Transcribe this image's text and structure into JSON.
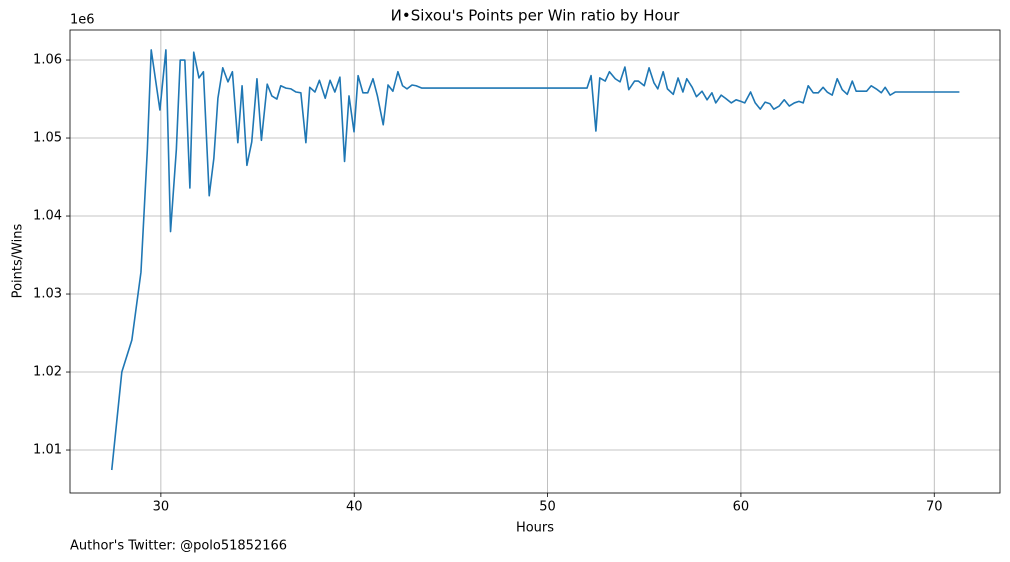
{
  "chart_data": {
    "type": "line",
    "title": "И•Sixou's Points per Win ratio by Hour",
    "xlabel": "Hours",
    "ylabel": "Points/Wins",
    "y_offset_label": "1e6",
    "footer": "Author's Twitter: @polo51852166",
    "grid": true,
    "xlim": [
      25.3,
      73.4
    ],
    "ylim": [
      1004490,
      1063850
    ],
    "xticks": [
      30,
      40,
      50,
      60,
      70
    ],
    "yticks": [
      {
        "value": 1010000,
        "label": "1.01"
      },
      {
        "value": 1020000,
        "label": "1.02"
      },
      {
        "value": 1030000,
        "label": "1.03"
      },
      {
        "value": 1040000,
        "label": "1.04"
      },
      {
        "value": 1050000,
        "label": "1.05"
      },
      {
        "value": 1060000,
        "label": "1.06"
      }
    ],
    "series": [
      {
        "color": "#1f77b4",
        "x": [
          27.46,
          27.98,
          28.5,
          28.97,
          29.3,
          29.5,
          29.95,
          30.26,
          30.5,
          30.8,
          31.0,
          31.24,
          31.5,
          31.7,
          31.97,
          32.2,
          32.5,
          32.74,
          32.95,
          33.2,
          33.47,
          33.7,
          33.98,
          34.2,
          34.45,
          34.7,
          34.97,
          35.2,
          35.5,
          35.74,
          36.0,
          36.2,
          36.47,
          36.73,
          36.99,
          37.24,
          37.5,
          37.7,
          37.97,
          38.2,
          38.5,
          38.75,
          39.0,
          39.26,
          39.5,
          39.73,
          39.99,
          40.2,
          40.45,
          40.7,
          40.97,
          41.2,
          41.5,
          41.75,
          42.0,
          42.26,
          42.5,
          42.73,
          42.99,
          43.2,
          43.5,
          52.04,
          52.25,
          52.5,
          52.7,
          52.98,
          53.2,
          53.5,
          53.75,
          54.0,
          54.2,
          54.5,
          54.7,
          55.0,
          55.25,
          55.5,
          55.7,
          55.98,
          56.2,
          56.5,
          56.75,
          57.0,
          57.2,
          57.48,
          57.7,
          57.99,
          58.25,
          58.5,
          58.7,
          58.98,
          59.2,
          59.5,
          59.75,
          60.0,
          60.2,
          60.5,
          60.74,
          61.0,
          61.25,
          61.5,
          61.7,
          61.98,
          62.24,
          62.5,
          62.76,
          63.0,
          63.22,
          63.48,
          63.74,
          64.0,
          64.25,
          64.46,
          64.72,
          64.98,
          65.24,
          65.5,
          65.76,
          65.96,
          66.2,
          66.5,
          66.74,
          67.0,
          67.26,
          67.46,
          67.72,
          67.98,
          71.3
        ],
        "values": [
          1007440,
          1020000,
          1024100,
          1032800,
          1048500,
          1061300,
          1053600,
          1061300,
          1038000,
          1048500,
          1060000,
          1060000,
          1043600,
          1061000,
          1057700,
          1058500,
          1042600,
          1047400,
          1055100,
          1059000,
          1057200,
          1058500,
          1049400,
          1056700,
          1046500,
          1049500,
          1057600,
          1049700,
          1056900,
          1055400,
          1055000,
          1056700,
          1056400,
          1056300,
          1055900,
          1055800,
          1049400,
          1056500,
          1055900,
          1057400,
          1055100,
          1057400,
          1055900,
          1057800,
          1047000,
          1055400,
          1050800,
          1058000,
          1055800,
          1055800,
          1057600,
          1055400,
          1051700,
          1056800,
          1056000,
          1058500,
          1056700,
          1056300,
          1056800,
          1056700,
          1056400,
          1056400,
          1058000,
          1050900,
          1057700,
          1057300,
          1058500,
          1057600,
          1057200,
          1059100,
          1056200,
          1057300,
          1057300,
          1056700,
          1059000,
          1057100,
          1056300,
          1058500,
          1056300,
          1055600,
          1057700,
          1055900,
          1057600,
          1056500,
          1055300,
          1056000,
          1054900,
          1055800,
          1054500,
          1055500,
          1055100,
          1054500,
          1054900,
          1054700,
          1054500,
          1055900,
          1054500,
          1053700,
          1054600,
          1054400,
          1053700,
          1054100,
          1054900,
          1054100,
          1054500,
          1054700,
          1054500,
          1056700,
          1055800,
          1055800,
          1056500,
          1055900,
          1055500,
          1057600,
          1056200,
          1055600,
          1057300,
          1056000,
          1056000,
          1056000,
          1056700,
          1056300,
          1055800,
          1056500,
          1055500,
          1055900,
          1055900
        ]
      }
    ]
  }
}
